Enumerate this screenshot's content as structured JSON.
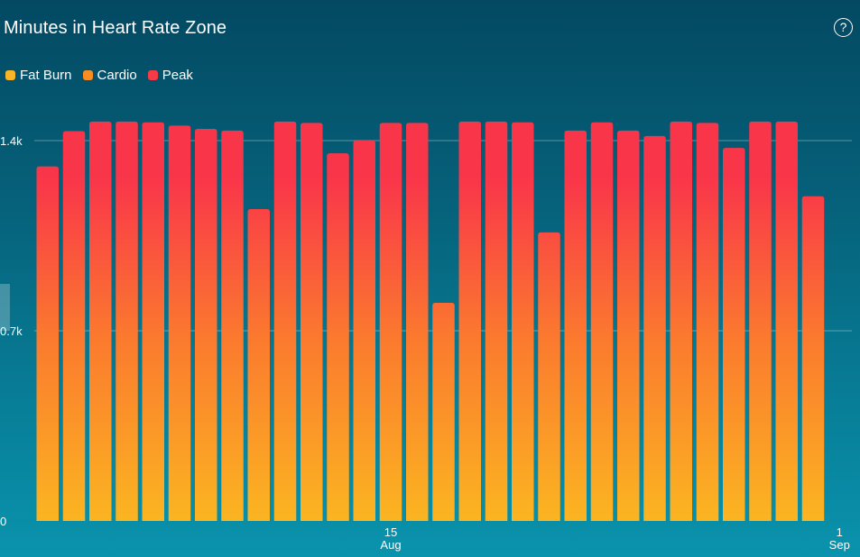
{
  "header": {
    "title": "Minutes in Heart Rate Zone",
    "help_label": "?"
  },
  "legend": [
    {
      "label": "Fat Burn",
      "color": "#f7b62a"
    },
    {
      "label": "Cardio",
      "color": "#f98d24"
    },
    {
      "label": "Peak",
      "color": "#f63a46"
    }
  ],
  "chart_data": {
    "type": "bar",
    "title": "Minutes in Heart Rate Zone",
    "series_names": [
      "Fat Burn",
      "Cardio",
      "Peak"
    ],
    "x": [
      "2018-08-02",
      "2018-08-03",
      "2018-08-04",
      "2018-08-05",
      "2018-08-06",
      "2018-08-07",
      "2018-08-08",
      "2018-08-09",
      "2018-08-10",
      "2018-08-11",
      "2018-08-12",
      "2018-08-13",
      "2018-08-14",
      "2018-08-15",
      "2018-08-16",
      "2018-08-17",
      "2018-08-18",
      "2018-08-19",
      "2018-08-20",
      "2018-08-21",
      "2018-08-22",
      "2018-08-23",
      "2018-08-24",
      "2018-08-25",
      "2018-08-26",
      "2018-08-27",
      "2018-08-28",
      "2018-08-29",
      "2018-08-30",
      "2018-08-31"
    ],
    "values": [
      1305,
      1435,
      1470,
      1470,
      1467,
      1455,
      1443,
      1437,
      1148,
      1470,
      1465,
      1353,
      1400,
      1465,
      1465,
      803,
      1470,
      1470,
      1467,
      1062,
      1437,
      1467,
      1437,
      1417,
      1470,
      1465,
      1373,
      1470,
      1470,
      1195
    ],
    "ylim": [
      0,
      1400
    ],
    "yticks": [
      {
        "v": 0,
        "label": "0"
      },
      {
        "v": 700,
        "label": "0.7k"
      },
      {
        "v": 1400,
        "label": "1.4k"
      }
    ],
    "xticks": [
      {
        "x": "2018-08-15",
        "day": "15",
        "month": "Aug"
      },
      {
        "x": "2018-09-01",
        "day": "1",
        "month": "Sep"
      }
    ],
    "grid": true,
    "legend_position": "top-left",
    "colors": {
      "bottom": "#fbb521",
      "middle": "#fb7a2e",
      "top": "#f9354a"
    }
  }
}
